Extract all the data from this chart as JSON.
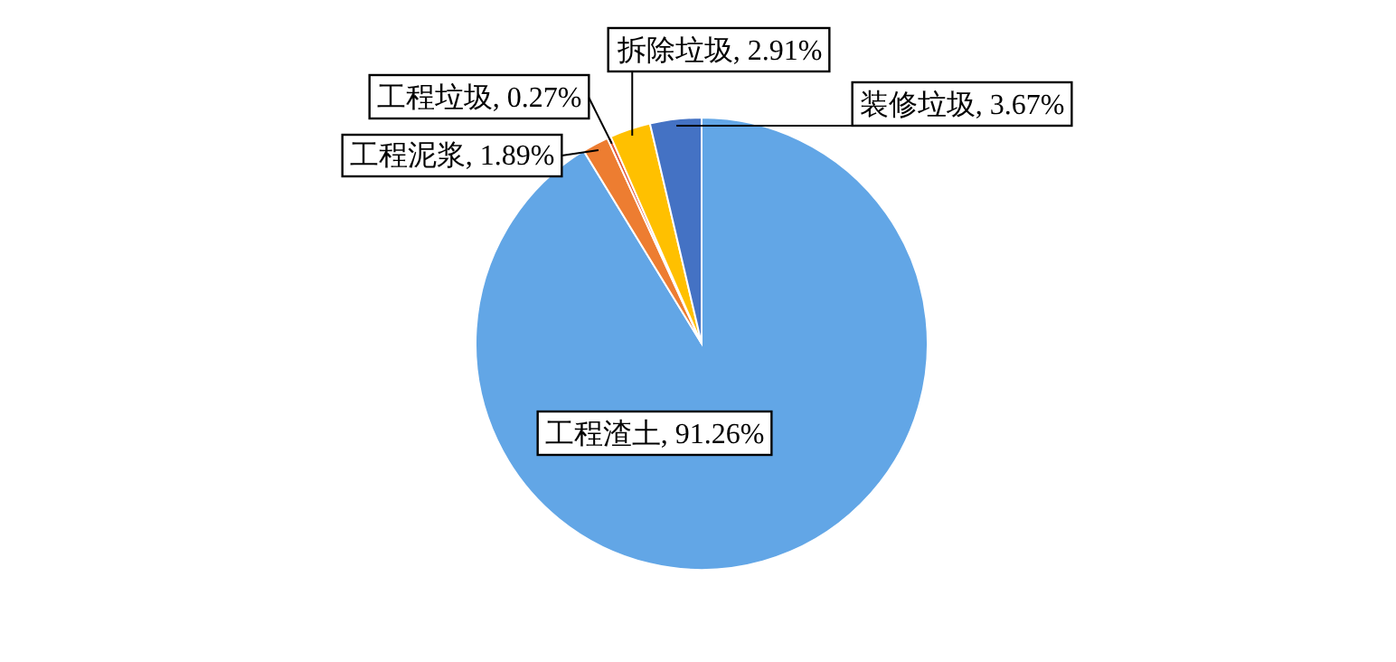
{
  "chart_data": {
    "type": "pie",
    "categories": [
      "工程渣土",
      "工程泥浆",
      "工程垃圾",
      "拆除垃圾",
      "装修垃圾"
    ],
    "values": [
      91.26,
      1.89,
      0.27,
      2.91,
      3.67
    ],
    "value_labels": [
      ", 91.26%",
      ", 1.89%",
      ", 0.27%",
      ", 2.91%",
      ", 3.67%"
    ],
    "colors": [
      "#62a6e6",
      "#ed7d31",
      "#e0553a",
      "#ffc000",
      "#4472c4"
    ],
    "legend": false
  }
}
